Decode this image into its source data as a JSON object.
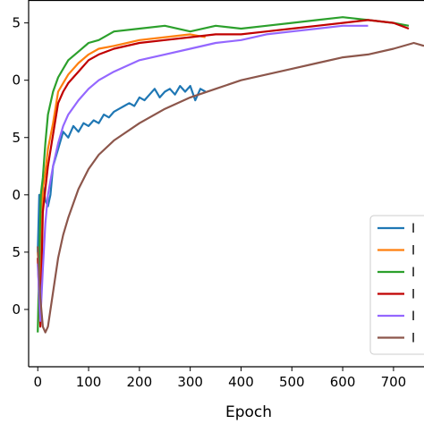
{
  "chart_data": {
    "type": "line",
    "xlabel": "Epoch",
    "ylabel": "",
    "xlim": [
      -18,
      760
    ],
    "ylim": [
      -0.5,
      5.9
    ],
    "x_ticks": [
      0,
      100,
      200,
      300,
      400,
      500,
      600,
      700
    ],
    "y_ticks": [
      {
        "value": 0.5,
        "label": "0"
      },
      {
        "value": 1.5,
        "label": "5"
      },
      {
        "value": 2.5,
        "label": "0"
      },
      {
        "value": 3.5,
        "label": "5"
      },
      {
        "value": 4.5,
        "label": "0"
      },
      {
        "value": 5.5,
        "label": "5"
      }
    ],
    "grid": false,
    "legend": {
      "placement": "lower-right"
    },
    "series": [
      {
        "name": "I",
        "color": "#1f77b4",
        "x": [
          0,
          3,
          6,
          10,
          15,
          20,
          25,
          30,
          40,
          50,
          60,
          70,
          80,
          90,
          100,
          110,
          120,
          130,
          140,
          150,
          160,
          170,
          180,
          190,
          200,
          210,
          220,
          230,
          240,
          250,
          260,
          270,
          280,
          290,
          300,
          310,
          320,
          330
        ],
        "y": [
          1.5,
          2.5,
          2.2,
          2.7,
          2.4,
          2.3,
          2.5,
          3.0,
          3.3,
          3.6,
          3.5,
          3.7,
          3.6,
          3.75,
          3.7,
          3.8,
          3.75,
          3.9,
          3.85,
          3.95,
          4.0,
          4.05,
          4.1,
          4.05,
          4.2,
          4.15,
          4.25,
          4.35,
          4.2,
          4.3,
          4.35,
          4.25,
          4.4,
          4.3,
          4.4,
          4.15,
          4.35,
          4.3
        ]
      },
      {
        "name": "I",
        "color": "#ff7f0e",
        "x": [
          0,
          5,
          10,
          15,
          20,
          30,
          40,
          50,
          60,
          80,
          100,
          120,
          150,
          200,
          250,
          300,
          330
        ],
        "y": [
          1.5,
          0.9,
          2.6,
          2.9,
          3.3,
          3.75,
          4.3,
          4.45,
          4.6,
          4.8,
          4.95,
          5.05,
          5.1,
          5.2,
          5.25,
          5.3,
          5.25
        ]
      },
      {
        "name": "I",
        "color": "#2ca02c",
        "x": [
          0,
          3,
          6,
          10,
          15,
          20,
          30,
          40,
          50,
          60,
          80,
          100,
          120,
          150,
          200,
          250,
          300,
          350,
          400,
          450,
          500,
          550,
          600,
          650,
          700,
          730
        ],
        "y": [
          0.1,
          1.3,
          2.5,
          2.8,
          3.4,
          3.9,
          4.3,
          4.55,
          4.7,
          4.85,
          5.0,
          5.15,
          5.2,
          5.35,
          5.4,
          5.45,
          5.35,
          5.45,
          5.4,
          5.45,
          5.5,
          5.55,
          5.6,
          5.55,
          5.5,
          5.45
        ]
      },
      {
        "name": "I",
        "color": "#c00000",
        "x": [
          0,
          5,
          10,
          15,
          20,
          30,
          40,
          50,
          60,
          80,
          100,
          120,
          150,
          200,
          250,
          300,
          350,
          400,
          450,
          500,
          550,
          600,
          650,
          700,
          730
        ],
        "y": [
          1.4,
          0.2,
          2.2,
          2.6,
          3.0,
          3.55,
          4.1,
          4.3,
          4.45,
          4.65,
          4.85,
          4.95,
          5.05,
          5.15,
          5.2,
          5.25,
          5.3,
          5.3,
          5.35,
          5.4,
          5.45,
          5.5,
          5.55,
          5.5,
          5.4
        ]
      },
      {
        "name": "I",
        "color": "#9467ff",
        "x": [
          0,
          5,
          10,
          15,
          20,
          30,
          40,
          50,
          60,
          80,
          100,
          120,
          150,
          200,
          250,
          300,
          350,
          400,
          450,
          500,
          550,
          600,
          650
        ],
        "y": [
          1.3,
          0.3,
          1.2,
          2.0,
          2.5,
          3.0,
          3.4,
          3.7,
          3.9,
          4.15,
          4.35,
          4.5,
          4.65,
          4.85,
          4.95,
          5.05,
          5.15,
          5.2,
          5.3,
          5.35,
          5.4,
          5.45,
          5.45
        ]
      },
      {
        "name": "I",
        "color": "#8c564b",
        "x": [
          0,
          5,
          10,
          15,
          20,
          30,
          40,
          50,
          60,
          80,
          100,
          120,
          150,
          200,
          250,
          300,
          350,
          400,
          450,
          500,
          550,
          600,
          650,
          700,
          740,
          760
        ],
        "y": [
          1.6,
          0.7,
          0.2,
          0.1,
          0.2,
          0.8,
          1.4,
          1.8,
          2.1,
          2.6,
          2.95,
          3.2,
          3.45,
          3.75,
          4.0,
          4.2,
          4.35,
          4.5,
          4.6,
          4.7,
          4.8,
          4.9,
          4.95,
          5.05,
          5.15,
          5.1
        ]
      }
    ]
  }
}
